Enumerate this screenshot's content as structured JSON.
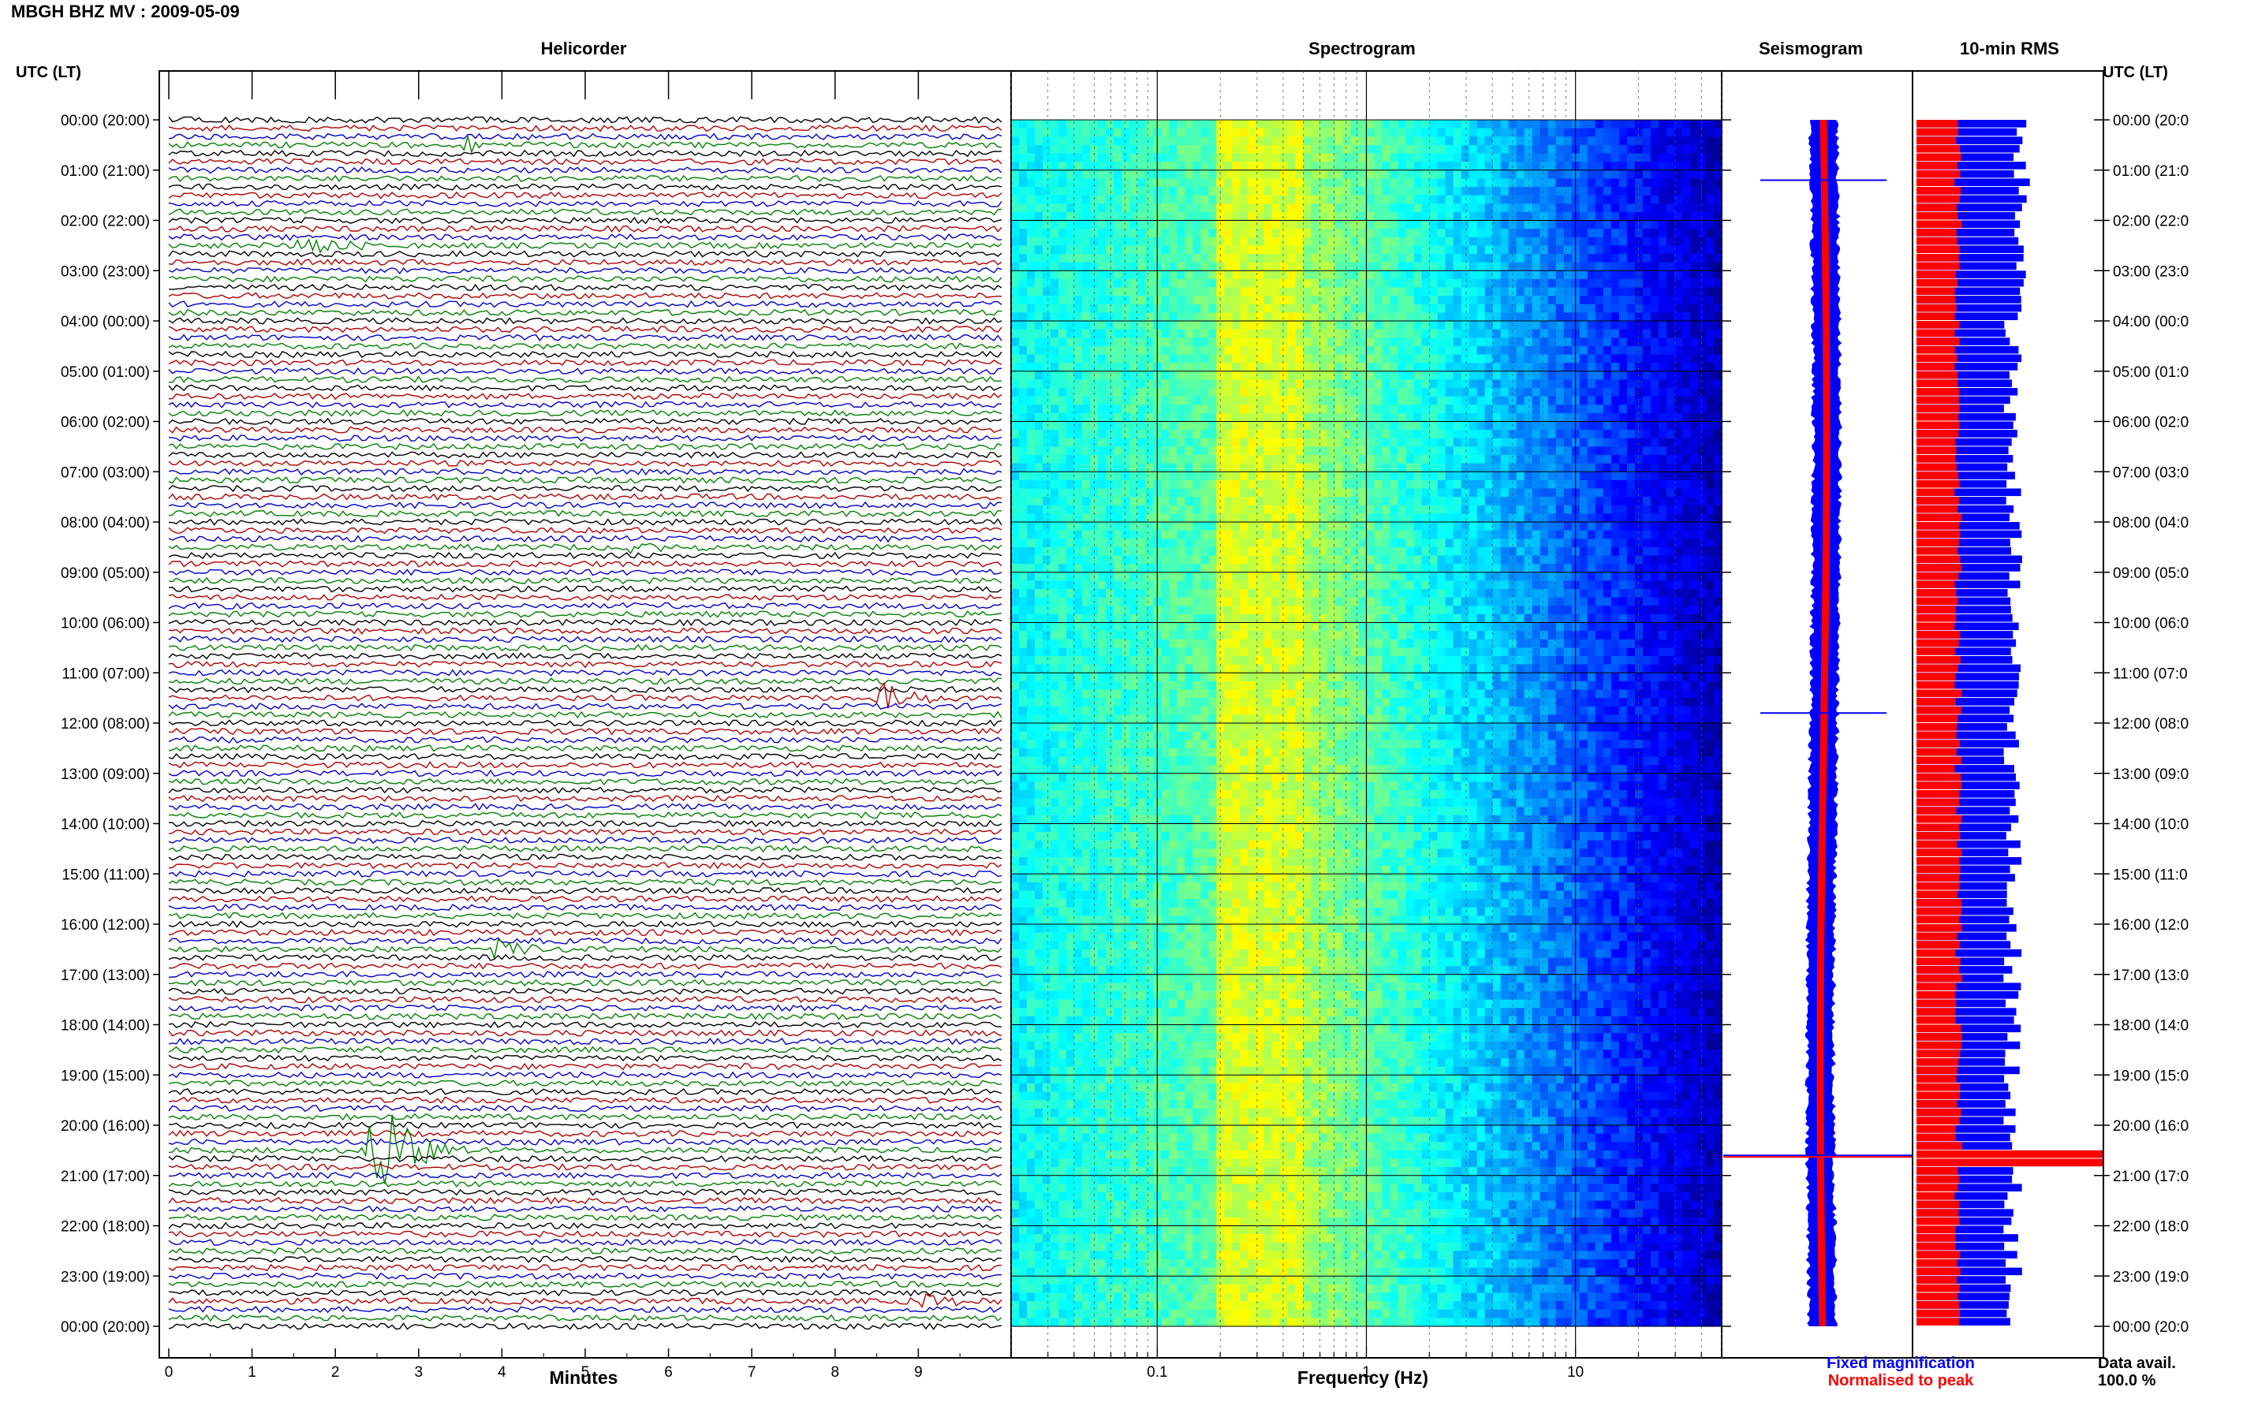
{
  "title": "MBGH BHZ MV : 2009-05-09",
  "left_axis_header": "UTC (LT)",
  "right_axis_header": "UTC (LT)",
  "panels": {
    "helicorder": "Helicorder",
    "spectrogram": "Spectrogram",
    "seismogram": "Seismogram",
    "rms": "10-min RMS"
  },
  "x_labels": {
    "helicorder": "Minutes",
    "spectrogram": "Frequency (Hz)"
  },
  "legend": {
    "fixed": "Fixed magnification",
    "normalised": "Normalised to peak",
    "fixed_color": "#0000ff",
    "normalised_color": "#ff0000"
  },
  "data_avail": {
    "label": "Data avail.",
    "value": "100.0 %"
  },
  "time_labels_left": [
    "00:00 (20:00)",
    "01:00 (21:00)",
    "02:00 (22:00)",
    "03:00 (23:00)",
    "04:00 (00:00)",
    "05:00 (01:00)",
    "06:00 (02:00)",
    "07:00 (03:00)",
    "08:00 (04:00)",
    "09:00 (05:00)",
    "10:00 (06:00)",
    "11:00 (07:00)",
    "12:00 (08:00)",
    "13:00 (09:00)",
    "14:00 (10:00)",
    "15:00 (11:00)",
    "16:00 (12:00)",
    "17:00 (13:00)",
    "18:00 (14:00)",
    "19:00 (15:00)",
    "20:00 (16:00)",
    "21:00 (17:00)",
    "22:00 (18:00)",
    "23:00 (19:00)",
    "00:00 (20:00)"
  ],
  "time_labels_right": [
    "00:00 (20:0",
    "01:00 (21:0",
    "02:00 (22:0",
    "03:00 (23:0",
    "04:00 (00:0",
    "05:00 (01:0",
    "06:00 (02:0",
    "07:00 (03:0",
    "08:00 (04:0",
    "09:00 (05:0",
    "10:00 (06:0",
    "11:00 (07:0",
    "12:00 (08:0",
    "13:00 (09:0",
    "14:00 (10:0",
    "15:00 (11:0",
    "16:00 (12:0",
    "17:00 (13:0",
    "18:00 (14:0",
    "19:00 (15:0",
    "20:00 (16:0",
    "21:00 (17:0",
    "22:00 (18:0",
    "23:00 (19:0",
    "00:00 (20:0"
  ],
  "chart_data": [
    {
      "type": "line",
      "panel": "Helicorder",
      "xlabel": "Minutes",
      "x_ticks": [
        0,
        1,
        2,
        3,
        4,
        5,
        6,
        7,
        8,
        9
      ],
      "xlim": [
        0,
        10
      ],
      "rows_per_hour": 6,
      "row_minutes": 10,
      "trace_colors": [
        "#000000",
        "#b00000",
        "#0000c8",
        "#008000"
      ],
      "events": [
        {
          "hour": 0,
          "minute": 3.5,
          "amplitude": 1.6,
          "color": "#008000"
        },
        {
          "hour": 2,
          "minute": 1.6,
          "amplitude": 1.8,
          "color": "#600000"
        },
        {
          "hour": 8,
          "minute": 5.6,
          "amplitude": 1.2,
          "color": "#000000"
        },
        {
          "hour": 11,
          "minute": 8.6,
          "amplitude": 2.0,
          "color": "#000080"
        },
        {
          "hour": 16,
          "minute": 3.9,
          "amplitude": 1.2,
          "color": "#000000"
        },
        {
          "hour": 20,
          "minute": 2.5,
          "amplitude": 9.0,
          "color": "#008000"
        },
        {
          "hour": 23,
          "minute": 9.0,
          "amplitude": 1.2,
          "color": "#b00000"
        }
      ]
    },
    {
      "type": "heatmap",
      "panel": "Spectrogram",
      "xlabel": "Frequency (Hz)",
      "x_scale": "log",
      "xlim": [
        0.02,
        50
      ],
      "x_ticks": [
        0.1,
        1,
        10
      ],
      "y_hours": 24,
      "peak_band_hz": [
        0.2,
        0.5
      ],
      "colormap": [
        "#00008f",
        "#0000ff",
        "#0080ff",
        "#00ffff",
        "#80ff80",
        "#ffff00",
        "#ff8000"
      ]
    },
    {
      "type": "line",
      "panel": "Seismogram",
      "series": [
        {
          "name": "Fixed magnification",
          "color": "#0000ff"
        },
        {
          "name": "Normalised to peak",
          "color": "#ff0000"
        }
      ],
      "spikes_hour": [
        1.2,
        11.8,
        20.6
      ]
    },
    {
      "type": "bar",
      "panel": "10-min RMS",
      "orientation": "horizontal",
      "bins_per_hour": 6,
      "series": [
        {
          "name": "Normalised to peak",
          "color": "#ff0000"
        },
        {
          "name": "Fixed magnification",
          "color": "#0000ff"
        }
      ],
      "peak_hour": 20.6
    }
  ]
}
